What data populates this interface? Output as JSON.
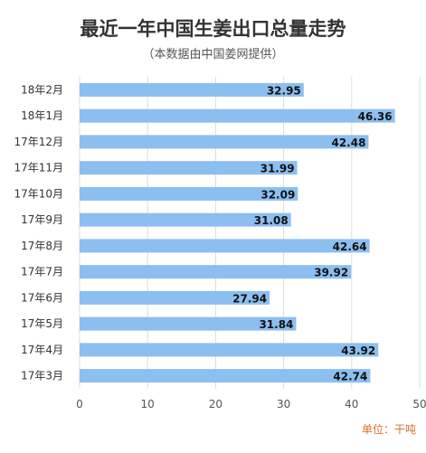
{
  "title": "最近一年中国生姜出口总量走势",
  "subtitle": "（本数据由中国姜网提供）",
  "unit_label": "单位：干吨",
  "colors": {
    "bar": "#8cbff0",
    "grid": "#dddddd",
    "unit": "#d8742b"
  },
  "chart_data": {
    "type": "bar",
    "orientation": "horizontal",
    "title": "最近一年中国生姜出口总量走势",
    "subtitle": "（本数据由中国姜网提供）",
    "categories": [
      "18年2月",
      "18年1月",
      "17年12月",
      "17年11月",
      "17年10月",
      "17年9月",
      "17年8月",
      "17年7月",
      "17年6月",
      "17年5月",
      "17年4月",
      "17年3月"
    ],
    "values": [
      32.95,
      46.36,
      42.48,
      31.99,
      32.09,
      31.08,
      42.64,
      39.92,
      27.94,
      31.84,
      43.92,
      42.74
    ],
    "xlim": [
      0,
      50
    ],
    "xticks": [
      0,
      10,
      20,
      30,
      40,
      50
    ],
    "grid": true,
    "unit": "单位：干吨"
  }
}
